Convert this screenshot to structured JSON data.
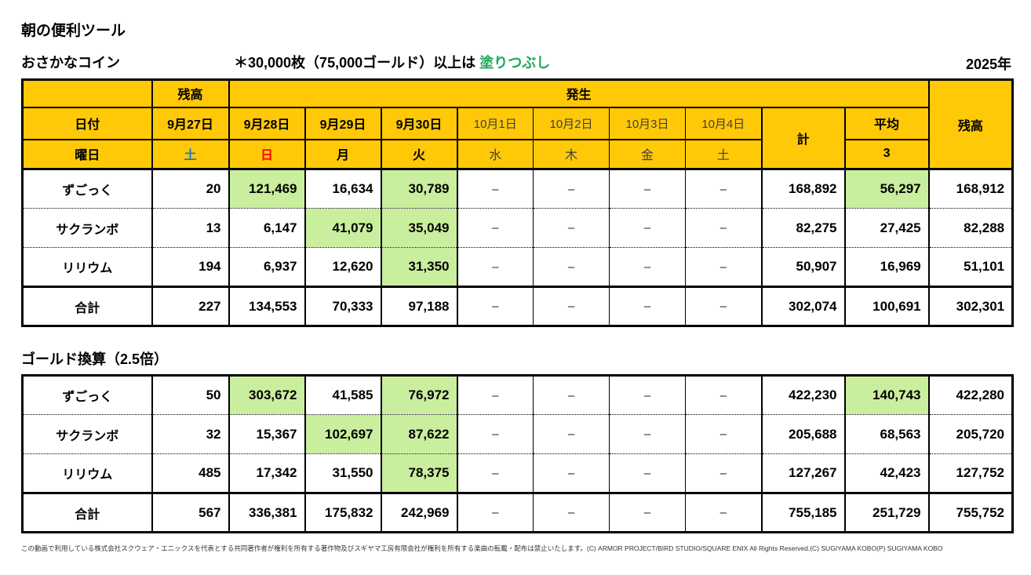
{
  "page": {
    "title": "朝の便利ツール",
    "subtitle": "おさかなコイン",
    "note_prefix": "＊30,000枚（75,000ゴールド）以上は ",
    "note_highlight": "塗りつぶし",
    "year": "2025年",
    "table2_title": "ゴールド換算（2.5倍）",
    "footer": "この動画で利用している株式会社スクウェア・エニックスを代表とする共同著作者が権利を所有する著作物及びスギヤマ工房有限会社が権利を所有する楽曲の転載・配布は禁止いたします。(C) ARMOR PROJECT/BIRD STUDIO/SQUARE ENIX All Rights Reserved.(C) SUGIYAMA KOBO(P) SUGIYAMA KOBO"
  },
  "colors": {
    "header_bg": "#FFC907",
    "highlight_bg": "#C9EE9E",
    "saturday_blue": "#2079C8",
    "sunday_red": "#FF0000",
    "note_green": "#1DA85B"
  },
  "header": {
    "balance_label": "残高",
    "occurrence_label": "発生",
    "date_label": "日付",
    "weekday_label": "曜日",
    "total_label": "計",
    "average_label": "平均",
    "average_count": "3",
    "balance_right_label": "残高",
    "dates": [
      {
        "label": "9月27日",
        "weekday": "土",
        "future": false
      },
      {
        "label": "9月28日",
        "weekday": "日",
        "future": false
      },
      {
        "label": "9月29日",
        "weekday": "月",
        "future": false
      },
      {
        "label": "9月30日",
        "weekday": "火",
        "future": false
      },
      {
        "label": "10月1日",
        "weekday": "水",
        "future": true
      },
      {
        "label": "10月2日",
        "weekday": "木",
        "future": true
      },
      {
        "label": "10月3日",
        "weekday": "金",
        "future": true
      },
      {
        "label": "10月4日",
        "weekday": "土",
        "future": true
      }
    ]
  },
  "tables": [
    {
      "name": "coin-table",
      "rows": [
        {
          "name": "ずごっく",
          "balance": "20",
          "values": [
            "121,469",
            "16,634",
            "30,789",
            "–",
            "–",
            "–",
            "–"
          ],
          "value_hl": [
            true,
            false,
            true,
            false,
            false,
            false,
            false
          ],
          "total": "168,892",
          "average": "56,297",
          "average_hl": true,
          "balance_end": "168,912",
          "is_total": false
        },
        {
          "name": "サクランボ",
          "balance": "13",
          "values": [
            "6,147",
            "41,079",
            "35,049",
            "–",
            "–",
            "–",
            "–"
          ],
          "value_hl": [
            false,
            true,
            true,
            false,
            false,
            false,
            false
          ],
          "total": "82,275",
          "average": "27,425",
          "average_hl": false,
          "balance_end": "82,288",
          "is_total": false
        },
        {
          "name": "リリウム",
          "balance": "194",
          "values": [
            "6,937",
            "12,620",
            "31,350",
            "–",
            "–",
            "–",
            "–"
          ],
          "value_hl": [
            false,
            false,
            true,
            false,
            false,
            false,
            false
          ],
          "total": "50,907",
          "average": "16,969",
          "average_hl": false,
          "balance_end": "51,101",
          "is_total": false
        },
        {
          "name": "合計",
          "balance": "227",
          "values": [
            "134,553",
            "70,333",
            "97,188",
            "–",
            "–",
            "–",
            "–"
          ],
          "value_hl": [
            false,
            false,
            false,
            false,
            false,
            false,
            false
          ],
          "total": "302,074",
          "average": "100,691",
          "average_hl": false,
          "balance_end": "302,301",
          "is_total": true
        }
      ]
    },
    {
      "name": "gold-table",
      "rows": [
        {
          "name": "ずごっく",
          "balance": "50",
          "values": [
            "303,672",
            "41,585",
            "76,972",
            "–",
            "–",
            "–",
            "–"
          ],
          "value_hl": [
            true,
            false,
            true,
            false,
            false,
            false,
            false
          ],
          "total": "422,230",
          "average": "140,743",
          "average_hl": true,
          "balance_end": "422,280",
          "is_total": false
        },
        {
          "name": "サクランボ",
          "balance": "32",
          "values": [
            "15,367",
            "102,697",
            "87,622",
            "–",
            "–",
            "–",
            "–"
          ],
          "value_hl": [
            false,
            true,
            true,
            false,
            false,
            false,
            false
          ],
          "total": "205,688",
          "average": "68,563",
          "average_hl": false,
          "balance_end": "205,720",
          "is_total": false
        },
        {
          "name": "リリウム",
          "balance": "485",
          "values": [
            "17,342",
            "31,550",
            "78,375",
            "–",
            "–",
            "–",
            "–"
          ],
          "value_hl": [
            false,
            false,
            true,
            false,
            false,
            false,
            false
          ],
          "total": "127,267",
          "average": "42,423",
          "average_hl": false,
          "balance_end": "127,752",
          "is_total": false
        },
        {
          "name": "合計",
          "balance": "567",
          "values": [
            "336,381",
            "175,832",
            "242,969",
            "–",
            "–",
            "–",
            "–"
          ],
          "value_hl": [
            false,
            false,
            false,
            false,
            false,
            false,
            false
          ],
          "total": "755,185",
          "average": "251,729",
          "average_hl": false,
          "balance_end": "755,752",
          "is_total": true
        }
      ]
    }
  ]
}
